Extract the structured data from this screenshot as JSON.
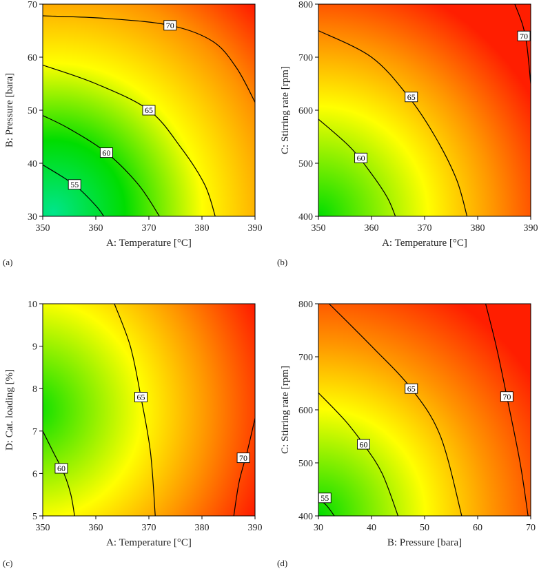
{
  "figure": {
    "panels": [
      "(a)",
      "(b)",
      "(c)",
      "(d)"
    ]
  },
  "chart_data": [
    {
      "type": "contour",
      "panel_label": "(a)",
      "xlabel": "A: Temperature [°C]",
      "ylabel": "B: Pressure [bara]",
      "xlim": [
        350,
        390
      ],
      "ylim": [
        30,
        70
      ],
      "xticks": [
        "350",
        "360",
        "370",
        "380",
        "390"
      ],
      "yticks": [
        "30",
        "40",
        "50",
        "60",
        "70"
      ],
      "xtick_values": [
        350,
        360,
        370,
        380,
        390
      ],
      "ytick_values": [
        30,
        40,
        50,
        60,
        70
      ],
      "colormap": [
        "#00e58a",
        "#00dd00",
        "#ffff00",
        "#ff9400",
        "#ff1e00"
      ],
      "contours": [
        {
          "level": "55",
          "points": [
            [
              350,
              39.7
            ],
            [
              356,
              35.9
            ],
            [
              360,
              32
            ],
            [
              361.5,
              30
            ]
          ],
          "label_at": [
            356,
            36
          ]
        },
        {
          "level": "60",
          "points": [
            [
              350,
              49
            ],
            [
              355,
              46.5
            ],
            [
              362,
              42
            ],
            [
              368,
              36
            ],
            [
              372,
              30
            ]
          ],
          "label_at": [
            362,
            42
          ]
        },
        {
          "level": "65",
          "points": [
            [
              350,
              58.5
            ],
            [
              360,
              55
            ],
            [
              370,
              50
            ],
            [
              376,
              43
            ],
            [
              380.5,
              36
            ],
            [
              382.5,
              30
            ]
          ],
          "label_at": [
            370,
            50
          ]
        },
        {
          "level": "70",
          "points": [
            [
              350,
              67.8
            ],
            [
              362,
              67.3
            ],
            [
              374,
              66
            ],
            [
              382,
              63
            ],
            [
              386.5,
              58
            ],
            [
              390,
              51.5
            ]
          ],
          "label_at": [
            374,
            66
          ]
        }
      ]
    },
    {
      "type": "contour",
      "panel_label": "(b)",
      "xlabel": "A: Temperature [°C]",
      "ylabel": "C: Stirring rate [rpm]",
      "xlim": [
        350,
        390
      ],
      "ylim": [
        400,
        800
      ],
      "xticks": [
        "350",
        "360",
        "370",
        "380",
        "390"
      ],
      "yticks": [
        "400",
        "500",
        "600",
        "700",
        "800"
      ],
      "xtick_values": [
        350,
        360,
        370,
        380,
        390
      ],
      "ytick_values": [
        400,
        500,
        600,
        700,
        800
      ],
      "colormap": [
        "#00dd00",
        "#ffff00",
        "#ff9400",
        "#ff1e00"
      ],
      "contours": [
        {
          "level": "60",
          "points": [
            [
              350,
              583
            ],
            [
              356,
              530
            ],
            [
              360,
              480
            ],
            [
              363,
              435
            ],
            [
              364.5,
              400
            ]
          ],
          "label_at": [
            358,
            510
          ]
        },
        {
          "level": "65",
          "points": [
            [
              350,
              750
            ],
            [
              360,
              700
            ],
            [
              367,
              625
            ],
            [
              372,
              550
            ],
            [
              376,
              470
            ],
            [
              378,
              400
            ]
          ],
          "label_at": [
            367.5,
            625
          ]
        },
        {
          "level": "70",
          "points": [
            [
              387,
              800
            ],
            [
              388.5,
              760
            ],
            [
              389.3,
              720
            ],
            [
              390,
              650
            ]
          ],
          "label_at": [
            388.7,
            740
          ]
        }
      ]
    },
    {
      "type": "contour",
      "panel_label": "(c)",
      "xlabel": "A: Temperature [°C]",
      "ylabel": "D: Cat. loading [%]",
      "xlim": [
        350,
        390
      ],
      "ylim": [
        5,
        10
      ],
      "xticks": [
        "350",
        "360",
        "370",
        "380",
        "390"
      ],
      "yticks": [
        "5",
        "6",
        "7",
        "8",
        "9",
        "10"
      ],
      "xtick_values": [
        350,
        360,
        370,
        380,
        390
      ],
      "ytick_values": [
        5,
        6,
        7,
        8,
        9,
        10
      ],
      "colormap": [
        "#00dd00",
        "#ffff00",
        "#ff9400",
        "#ff1e00"
      ],
      "contours": [
        {
          "level": "60",
          "points": [
            [
              350,
              7.0
            ],
            [
              352,
              6.5
            ],
            [
              354,
              6.0
            ],
            [
              355.3,
              5.5
            ],
            [
              356,
              5.0
            ]
          ],
          "label_at": [
            353.5,
            6.12
          ]
        },
        {
          "level": "65",
          "points": [
            [
              363.5,
              10.0
            ],
            [
              366.5,
              9.0
            ],
            [
              368.5,
              7.8
            ],
            [
              370.3,
              6.5
            ],
            [
              371.2,
              5.0
            ]
          ],
          "label_at": [
            368.5,
            7.8
          ]
        },
        {
          "level": "70",
          "points": [
            [
              390,
              7.3
            ],
            [
              388.5,
              6.5
            ],
            [
              387,
              5.8
            ],
            [
              386,
              5.0
            ]
          ],
          "label_at": [
            387.8,
            6.37
          ]
        }
      ]
    },
    {
      "type": "contour",
      "panel_label": "(d)",
      "xlabel": "B: Pressure [bara]",
      "ylabel": "C: Stirring rate [rpm]",
      "xlim": [
        30,
        70
      ],
      "ylim": [
        400,
        800
      ],
      "xticks": [
        "30",
        "40",
        "50",
        "60",
        "70"
      ],
      "yticks": [
        "400",
        "500",
        "600",
        "700",
        "800"
      ],
      "xtick_values": [
        30,
        40,
        50,
        60,
        70
      ],
      "ytick_values": [
        400,
        500,
        600,
        700,
        800
      ],
      "colormap": [
        "#00dd00",
        "#ffff00",
        "#ff9400",
        "#ff1e00"
      ],
      "contours": [
        {
          "level": "55",
          "points": [
            [
              30,
              432
            ],
            [
              31.5,
              420
            ],
            [
              33,
              400
            ]
          ],
          "label_at": [
            31.2,
            434
          ]
        },
        {
          "level": "60",
          "points": [
            [
              30,
              632
            ],
            [
              35,
              580
            ],
            [
              38.5,
              535
            ],
            [
              42,
              480
            ],
            [
              45,
              400
            ]
          ],
          "label_at": [
            38.5,
            535
          ]
        },
        {
          "level": "65",
          "points": [
            [
              32,
              800
            ],
            [
              40,
              720
            ],
            [
              47.5,
              640
            ],
            [
              53,
              550
            ],
            [
              57,
              400
            ]
          ],
          "label_at": [
            47.5,
            640
          ]
        },
        {
          "level": "70",
          "points": [
            [
              61.5,
              800
            ],
            [
              63.5,
              720
            ],
            [
              65.5,
              625
            ],
            [
              68,
              500
            ],
            [
              69.5,
              400
            ]
          ],
          "label_at": [
            65.5,
            625
          ]
        }
      ]
    }
  ]
}
